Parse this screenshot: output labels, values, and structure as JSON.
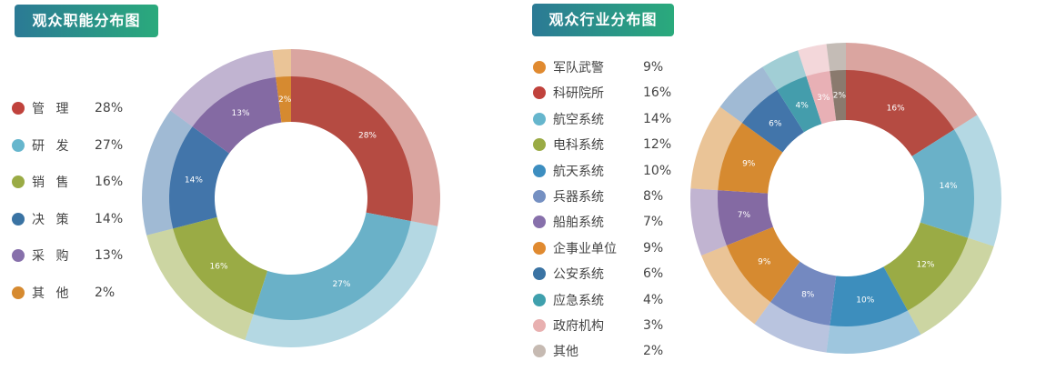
{
  "left": {
    "title": "观众职能分布图",
    "legend": [
      {
        "label": "管 理",
        "value": "28%",
        "color": "#c0423c"
      },
      {
        "label": "研 发",
        "value": "27%",
        "color": "#66b6cd"
      },
      {
        "label": "销 售",
        "value": "16%",
        "color": "#9aab45"
      },
      {
        "label": "决 策",
        "value": "14%",
        "color": "#3a73a3"
      },
      {
        "label": "采 购",
        "value": "13%",
        "color": "#8770ab"
      },
      {
        "label": "其 他",
        "value": "2%",
        "color": "#d68a30"
      }
    ]
  },
  "right": {
    "title": "观众行业分布图",
    "legend": [
      {
        "label": "军队武警",
        "value": "9%",
        "color": "#e08a30"
      },
      {
        "label": "科研院所",
        "value": "16%",
        "color": "#c0423c"
      },
      {
        "label": "航空系统",
        "value": "14%",
        "color": "#66b6cd"
      },
      {
        "label": "电科系统",
        "value": "12%",
        "color": "#9aab45"
      },
      {
        "label": "航天系统",
        "value": "10%",
        "color": "#3d8ec0"
      },
      {
        "label": "兵器系统",
        "value": "8%",
        "color": "#7590c2"
      },
      {
        "label": "船舶系统",
        "value": "7%",
        "color": "#8770ab"
      },
      {
        "label": "企事业单位",
        "value": "9%",
        "color": "#e08a30"
      },
      {
        "label": "公安系统",
        "value": "6%",
        "color": "#3a73a3"
      },
      {
        "label": "应急系统",
        "value": "4%",
        "color": "#3fa0ad"
      },
      {
        "label": "政府机构",
        "value": "3%",
        "color": "#e8b0b0"
      },
      {
        "label": "其他",
        "value": "2%",
        "color": "#c6bab2"
      }
    ]
  },
  "chart_data": [
    {
      "type": "pie",
      "title": "观众职能分布图",
      "categories": [
        "管理",
        "研发",
        "销售",
        "决策",
        "采购",
        "其他"
      ],
      "values": [
        28,
        27,
        16,
        14,
        13,
        2
      ],
      "unit": "%",
      "colors": [
        "#b54b42",
        "#6ab1c8",
        "#9aab45",
        "#4275aa",
        "#846aa3",
        "#d68a30"
      ],
      "style": "double-ring donut (inner saturated ring with labels, outer translucent ring)",
      "legend_position": "left"
    },
    {
      "type": "pie",
      "title": "观众行业分布图",
      "categories": [
        "科研院所",
        "航空系统",
        "电科系统",
        "航天系统",
        "兵器系统",
        "企事业单位",
        "船舶系统",
        "军队武警",
        "公安系统",
        "应急系统",
        "政府机构",
        "其他"
      ],
      "values": [
        16,
        14,
        12,
        10,
        8,
        9,
        7,
        9,
        6,
        4,
        3,
        2
      ],
      "unit": "%",
      "colors": [
        "#b54b42",
        "#6ab1c8",
        "#9aab45",
        "#3d8ebd",
        "#7489c0",
        "#d68a30",
        "#846aa3",
        "#d68a30",
        "#4275aa",
        "#449dac",
        "#e8b0b5",
        "#8a7a6e"
      ],
      "style": "double-ring donut (inner saturated ring with labels, outer translucent ring)",
      "legend_position": "left"
    }
  ]
}
